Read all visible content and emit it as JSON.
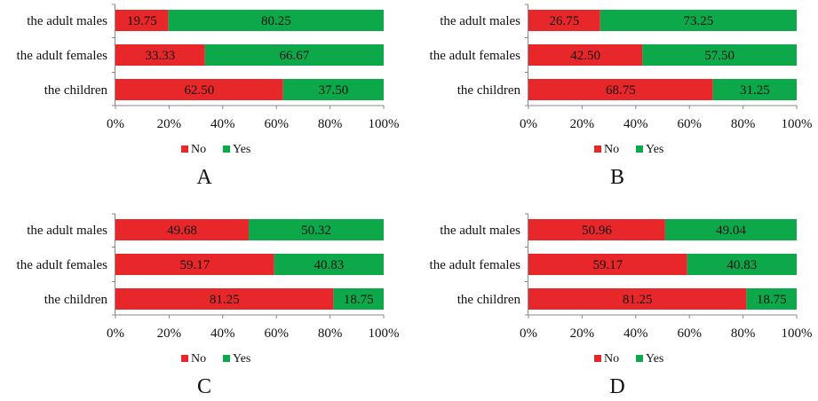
{
  "chart_data": [
    {
      "type": "bar",
      "orientation": "horizontal",
      "stacked": true,
      "panel_label": "A",
      "categories": [
        "the adult males",
        "the adult females",
        "the children"
      ],
      "series": [
        {
          "name": "No",
          "color": "#e8272a",
          "values": [
            19.75,
            33.33,
            62.5
          ]
        },
        {
          "name": "Yes",
          "color": "#0ca84a",
          "values": [
            80.25,
            66.67,
            37.5
          ]
        }
      ],
      "data_labels": {
        "No": [
          "19.75",
          "33.33",
          "62.50"
        ],
        "Yes": [
          "80.25",
          "66.67",
          "37.50"
        ]
      },
      "xticks": [
        "0%",
        "20%",
        "40%",
        "60%",
        "80%",
        "100%"
      ],
      "xlim": [
        0,
        100
      ],
      "legend": "bottom",
      "grid": false
    },
    {
      "type": "bar",
      "orientation": "horizontal",
      "stacked": true,
      "panel_label": "B",
      "categories": [
        "the adult males",
        "the adult females",
        "the children"
      ],
      "series": [
        {
          "name": "No",
          "color": "#e8272a",
          "values": [
            26.75,
            42.5,
            68.75
          ]
        },
        {
          "name": "Yes",
          "color": "#0ca84a",
          "values": [
            73.25,
            57.5,
            31.25
          ]
        }
      ],
      "data_labels": {
        "No": [
          "26.75",
          "42.50",
          "68.75"
        ],
        "Yes": [
          "73.25",
          "57.50",
          "31.25"
        ]
      },
      "xticks": [
        "0%",
        "20%",
        "40%",
        "60%",
        "80%",
        "100%"
      ],
      "xlim": [
        0,
        100
      ],
      "legend": "bottom",
      "grid": false
    },
    {
      "type": "bar",
      "orientation": "horizontal",
      "stacked": true,
      "panel_label": "C",
      "categories": [
        "the adult males",
        "the adult females",
        "the children"
      ],
      "series": [
        {
          "name": "No",
          "color": "#e8272a",
          "values": [
            49.68,
            59.17,
            81.25
          ]
        },
        {
          "name": "Yes",
          "color": "#0ca84a",
          "values": [
            50.32,
            40.83,
            18.75
          ]
        }
      ],
      "data_labels": {
        "No": [
          "49.68",
          "59.17",
          "81.25"
        ],
        "Yes": [
          "50.32",
          "40.83",
          "18.75"
        ]
      },
      "xticks": [
        "0%",
        "20%",
        "40%",
        "60%",
        "80%",
        "100%"
      ],
      "xlim": [
        0,
        100
      ],
      "legend": "bottom",
      "grid": false
    },
    {
      "type": "bar",
      "orientation": "horizontal",
      "stacked": true,
      "panel_label": "D",
      "categories": [
        "the adult males",
        "the adult females",
        "the children"
      ],
      "series": [
        {
          "name": "No",
          "color": "#e8272a",
          "values": [
            50.96,
            59.17,
            81.25
          ]
        },
        {
          "name": "Yes",
          "color": "#0ca84a",
          "values": [
            49.04,
            40.83,
            18.75
          ]
        }
      ],
      "data_labels": {
        "No": [
          "50.96",
          "59.17",
          "81.25"
        ],
        "Yes": [
          "49.04",
          "40.83",
          "18.75"
        ]
      },
      "xticks": [
        "0%",
        "20%",
        "40%",
        "60%",
        "80%",
        "100%"
      ],
      "xlim": [
        0,
        100
      ],
      "legend": "bottom",
      "grid": false
    }
  ]
}
